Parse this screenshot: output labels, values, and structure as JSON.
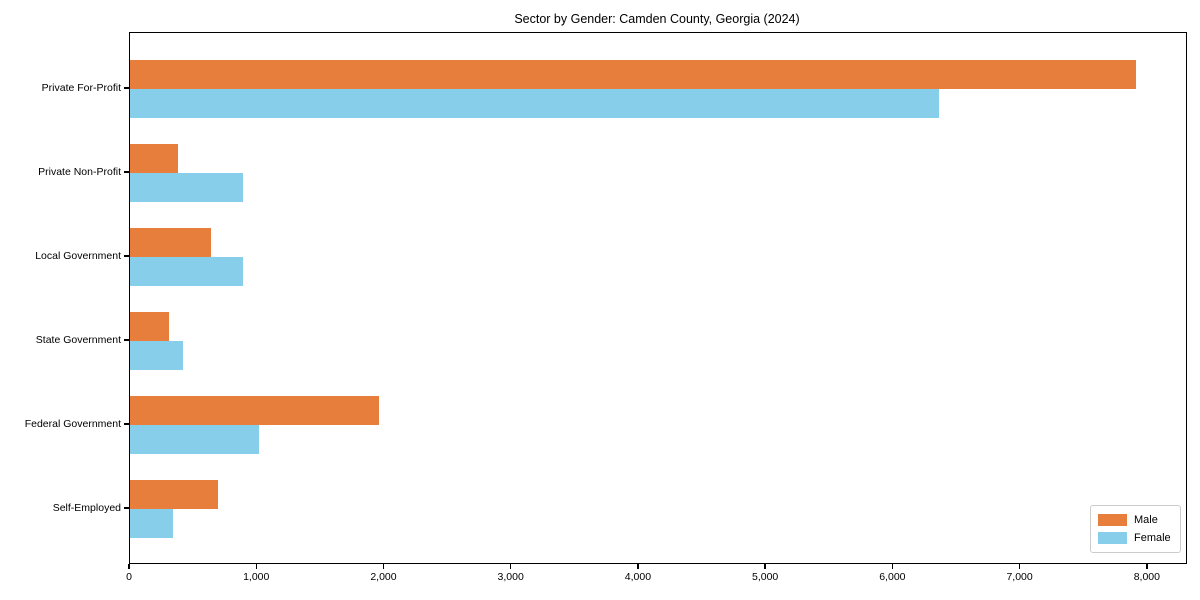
{
  "chart_data": {
    "type": "bar",
    "orientation": "horizontal",
    "title": "Sector by Gender: Camden County, Georgia (2024)",
    "categories": [
      "Private For-Profit",
      "Private Non-Profit",
      "Local Government",
      "State Government",
      "Federal Government",
      "Self-Employed"
    ],
    "series": [
      {
        "name": "Male",
        "color": "#e87e3c",
        "values": [
          7910,
          380,
          640,
          310,
          1960,
          690
        ]
      },
      {
        "name": "Female",
        "color": "#87ceeb",
        "values": [
          6360,
          890,
          890,
          420,
          1010,
          340
        ]
      }
    ],
    "xlim": [
      0,
      8300
    ],
    "x_ticks": [
      0,
      1000,
      2000,
      3000,
      4000,
      5000,
      6000,
      7000,
      8000
    ],
    "x_tick_labels": [
      "0",
      "1,000",
      "2,000",
      "3,000",
      "4,000",
      "5,000",
      "6,000",
      "7,000",
      "8,000"
    ],
    "ylabel": "",
    "xlabel": "",
    "grid": false,
    "legend": {
      "position": "lower right",
      "entries": [
        "Male",
        "Female"
      ]
    }
  }
}
